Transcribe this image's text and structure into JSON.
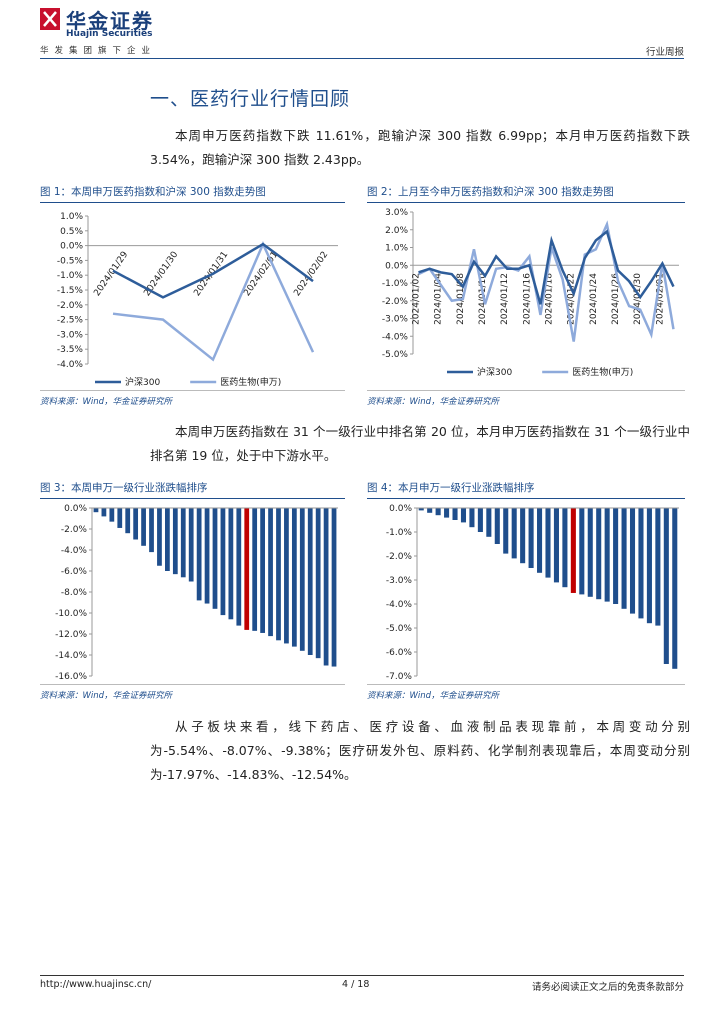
{
  "header": {
    "logo_cn": "华金证券",
    "logo_en": "Huajin Securities",
    "tagline": "华发集团旗下企业",
    "report_type": "行业周报"
  },
  "section_title": "一、医药行业行情回顾",
  "paragraphs": [
    "本周申万医药指数下跌 11.61%，跑输沪深 300 指数 6.99pp；本月申万医药指数下跌 3.54%，跑输沪深 300 指数 2.43pp。",
    "本周申万医药指数在 31 个一级行业中排名第 20 位，本月申万医药指数在 31 个一级行业中排名第 19 位，处于中下游水平。",
    "从子板块来看，线下药店、医疗设备、血液制品表现靠前，本周变动分别为-5.54%、-8.07%、-9.38%；医疗研发外包、原料药、化学制剂表现靠后，本周变动分别为-17.97%、-14.83%、-12.54%。"
  ],
  "chart_data": [
    {
      "type": "line",
      "title": "图 1：本周申万医药指数和沪深 300 指数走势图",
      "source": "资料来源：Wind，华金证券研究所",
      "categories": [
        "2024/01/29",
        "2024/01/30",
        "2024/01/31",
        "2024/02/01",
        "2024/02/02"
      ],
      "series": [
        {
          "name": "沪深300",
          "color": "#2e5d9a",
          "values": [
            -0.85,
            -1.75,
            -0.95,
            0.05,
            -1.2
          ]
        },
        {
          "name": "医药生物(申万)",
          "color": "#8eaadb",
          "values": [
            -2.3,
            -2.5,
            -3.85,
            0.05,
            -3.6
          ]
        }
      ],
      "ylim": [
        -4.0,
        1.0
      ],
      "yticks": [
        {
          "value": 1.0,
          "label": "1.0%"
        },
        {
          "value": 0.5,
          "label": "0.5%"
        },
        {
          "value": 0.0,
          "label": "0.0%"
        },
        {
          "value": -0.5,
          "label": "-0.5%"
        },
        {
          "value": -1.0,
          "label": "-1.0%"
        },
        {
          "value": -1.5,
          "label": "-1.5%"
        },
        {
          "value": -2.0,
          "label": "-2.0%"
        },
        {
          "value": -2.5,
          "label": "-2.5%"
        },
        {
          "value": -3.0,
          "label": "-3.0%"
        },
        {
          "value": -3.5,
          "label": "-3.5%"
        },
        {
          "value": -4.0,
          "label": "-4.0%"
        }
      ],
      "grid": false,
      "legend": "bottom"
    },
    {
      "type": "line",
      "title": "图 2：上月至今申万医药指数和沪深 300 指数走势图",
      "source": "资料来源：Wind，华金证券研究所",
      "categories": [
        "2024/01/02",
        null,
        "2024/01/04",
        null,
        "2024/01/08",
        null,
        "2024/01/10",
        null,
        "2024/01/12",
        null,
        "2024/01/16",
        null,
        "2024/01/18",
        null,
        "2024/01/22",
        null,
        "2024/01/24",
        null,
        "2024/01/26",
        null,
        "2024/01/30",
        null,
        "2024/02/01",
        null
      ],
      "series": [
        {
          "name": "沪深300",
          "color": "#2e5d9a",
          "values": [
            -0.4,
            -0.2,
            -0.4,
            -0.5,
            -1.2,
            0.2,
            -0.6,
            0.5,
            -0.2,
            -0.2,
            0.0,
            -2.2,
            1.4,
            -0.3,
            -1.6,
            0.4,
            1.4,
            1.9,
            -0.3,
            -0.9,
            -1.8,
            -0.9,
            0.1,
            -1.2
          ]
        },
        {
          "name": "医药生物(申万)",
          "color": "#8eaadb",
          "values": [
            -0.5,
            -0.2,
            -1.1,
            -2.0,
            -1.9,
            0.9,
            -2.2,
            -0.2,
            -0.1,
            -0.3,
            0.5,
            -2.8,
            1.0,
            -0.8,
            -4.3,
            0.6,
            0.9,
            2.3,
            -0.9,
            -2.3,
            -2.5,
            -3.9,
            0.1,
            -3.6
          ]
        }
      ],
      "ylim": [
        -5.0,
        3.0
      ],
      "yticks": [
        {
          "value": 3.0,
          "label": "3.0%"
        },
        {
          "value": 2.0,
          "label": "2.0%"
        },
        {
          "value": 1.0,
          "label": "1.0%"
        },
        {
          "value": 0.0,
          "label": "0.0%"
        },
        {
          "value": -1.0,
          "label": "-1.0%"
        },
        {
          "value": -2.0,
          "label": "-2.0%"
        },
        {
          "value": -3.0,
          "label": "-3.0%"
        },
        {
          "value": -4.0,
          "label": "-4.0%"
        },
        {
          "value": -5.0,
          "label": "-5.0%"
        }
      ],
      "grid": false,
      "legend": "bottom"
    },
    {
      "type": "bar",
      "title": "图 3：本周申万一级行业涨跌幅排序",
      "source": "资料来源：Wind，华金证券研究所",
      "categories": [
        null,
        null,
        null,
        null,
        null,
        null,
        null,
        null,
        null,
        null,
        null,
        null,
        null,
        null,
        null,
        null,
        null,
        null,
        null,
        null,
        null,
        null,
        null,
        null,
        null,
        null,
        null,
        null,
        null,
        null,
        null
      ],
      "values": [
        -0.4,
        -0.8,
        -1.3,
        -1.9,
        -2.4,
        -3.0,
        -3.6,
        -4.2,
        -5.5,
        -6.0,
        -6.3,
        -6.6,
        -7.0,
        -8.8,
        -9.1,
        -9.6,
        -10.2,
        -10.6,
        -11.2,
        -11.61,
        -11.7,
        -11.9,
        -12.2,
        -12.6,
        -12.9,
        -13.2,
        -13.6,
        -14.0,
        -14.3,
        -15.0,
        -15.1
      ],
      "colors": [
        "#1f4e8c",
        "#1f4e8c",
        "#1f4e8c",
        "#1f4e8c",
        "#1f4e8c",
        "#1f4e8c",
        "#1f4e8c",
        "#1f4e8c",
        "#1f4e8c",
        "#1f4e8c",
        "#1f4e8c",
        "#1f4e8c",
        "#1f4e8c",
        "#1f4e8c",
        "#1f4e8c",
        "#1f4e8c",
        "#1f4e8c",
        "#1f4e8c",
        "#1f4e8c",
        "#c00000",
        "#1f4e8c",
        "#1f4e8c",
        "#1f4e8c",
        "#1f4e8c",
        "#1f4e8c",
        "#1f4e8c",
        "#1f4e8c",
        "#1f4e8c",
        "#1f4e8c",
        "#1f4e8c",
        "#1f4e8c"
      ],
      "ylim": [
        -16.0,
        0.0
      ],
      "yticks": [
        {
          "value": 0.0,
          "label": "0.0%"
        },
        {
          "value": -2.0,
          "label": "-2.0%"
        },
        {
          "value": -4.0,
          "label": "-4.0%"
        },
        {
          "value": -6.0,
          "label": "-6.0%"
        },
        {
          "value": -8.0,
          "label": "-8.0%"
        },
        {
          "value": -10.0,
          "label": "-10.0%"
        },
        {
          "value": -12.0,
          "label": "-12.0%"
        },
        {
          "value": -14.0,
          "label": "-14.0%"
        },
        {
          "value": -16.0,
          "label": "-16.0%"
        }
      ],
      "grid": false
    },
    {
      "type": "bar",
      "title": "图 4：本月申万一级行业涨跌幅排序",
      "source": "资料来源：Wind，华金证券研究所",
      "categories": [
        null,
        null,
        null,
        null,
        null,
        null,
        null,
        null,
        null,
        null,
        null,
        null,
        null,
        null,
        null,
        null,
        null,
        null,
        null,
        null,
        null,
        null,
        null,
        null,
        null,
        null,
        null,
        null,
        null,
        null,
        null
      ],
      "values": [
        -0.1,
        -0.2,
        -0.3,
        -0.4,
        -0.5,
        -0.6,
        -0.8,
        -1.0,
        -1.2,
        -1.5,
        -1.9,
        -2.1,
        -2.3,
        -2.5,
        -2.7,
        -2.9,
        -3.1,
        -3.3,
        -3.54,
        -3.6,
        -3.7,
        -3.8,
        -3.9,
        -4.0,
        -4.2,
        -4.4,
        -4.6,
        -4.8,
        -4.9,
        -6.5,
        -6.7
      ],
      "colors": [
        "#1f4e8c",
        "#1f4e8c",
        "#1f4e8c",
        "#1f4e8c",
        "#1f4e8c",
        "#1f4e8c",
        "#1f4e8c",
        "#1f4e8c",
        "#1f4e8c",
        "#1f4e8c",
        "#1f4e8c",
        "#1f4e8c",
        "#1f4e8c",
        "#1f4e8c",
        "#1f4e8c",
        "#1f4e8c",
        "#1f4e8c",
        "#1f4e8c",
        "#c00000",
        "#1f4e8c",
        "#1f4e8c",
        "#1f4e8c",
        "#1f4e8c",
        "#1f4e8c",
        "#1f4e8c",
        "#1f4e8c",
        "#1f4e8c",
        "#1f4e8c",
        "#1f4e8c",
        "#1f4e8c",
        "#1f4e8c"
      ],
      "ylim": [
        -7.0,
        0.0
      ],
      "yticks": [
        {
          "value": 0.0,
          "label": "0.0%"
        },
        {
          "value": -1.0,
          "label": "-1.0%"
        },
        {
          "value": -2.0,
          "label": "-2.0%"
        },
        {
          "value": -3.0,
          "label": "-3.0%"
        },
        {
          "value": -4.0,
          "label": "-4.0%"
        },
        {
          "value": -5.0,
          "label": "-5.0%"
        },
        {
          "value": -6.0,
          "label": "-6.0%"
        },
        {
          "value": -7.0,
          "label": "-7.0%"
        }
      ],
      "grid": false
    }
  ],
  "footer": {
    "url": "http://www.huajinsc.cn/",
    "page": "4 / 18",
    "disclaimer": "请务必阅读正文之后的免责条款部分"
  }
}
